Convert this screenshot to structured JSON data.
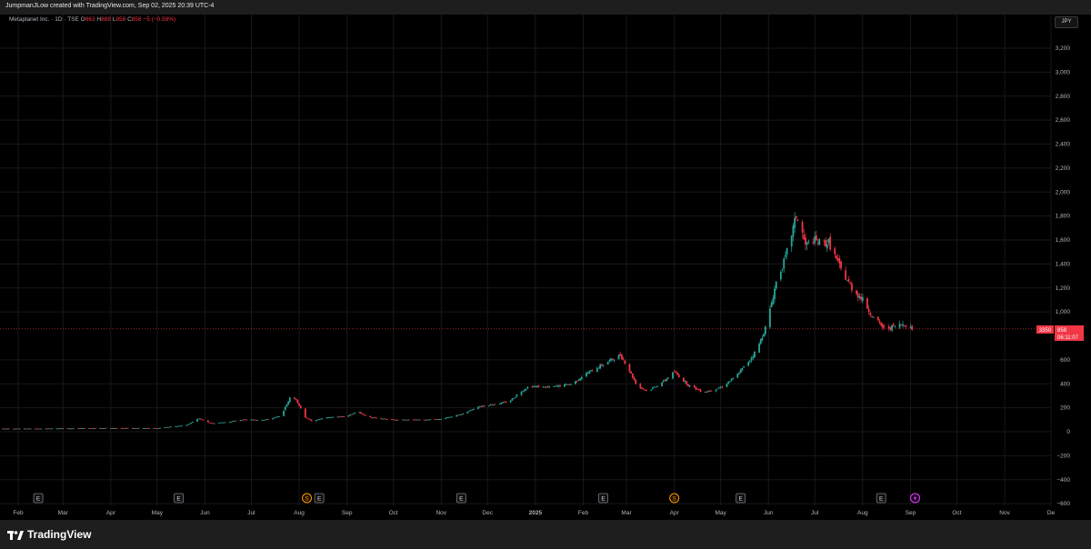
{
  "header": {
    "title": "JumpmanJLow created with TradingView.com, Sep 02, 2025 20:39 UTC-4"
  },
  "legend": {
    "symbol": "Metaplanet Inc. · 1D · TSE",
    "o_label": "O",
    "o_value": "863",
    "h_label": "H",
    "h_value": "888",
    "l_label": "L",
    "l_value": "858",
    "c_label": "C",
    "c_value": "858",
    "change": "−5 (−0.59%)"
  },
  "currency": "JPY",
  "price_tag": {
    "left": "3350",
    "value": "858",
    "countdown": "06:11:07"
  },
  "brand": {
    "name": "TradingView"
  },
  "colors": {
    "up": "#26a69a",
    "down": "#f23645",
    "grid": "#181818",
    "axis_text": "#b2b5be"
  },
  "chart_data": {
    "type": "candlestick",
    "x_ticks": [
      "Feb",
      "Mar",
      "Apr",
      "May",
      "Jun",
      "Jul",
      "Aug",
      "Sep",
      "Oct",
      "Nov",
      "Dec",
      "2025",
      "Feb",
      "Mar",
      "Apr",
      "May",
      "Jun",
      "Jul",
      "Aug",
      "Sep",
      "Oct",
      "Nov",
      "De"
    ],
    "y_ticks": [
      "3,200",
      "3,000",
      "2,800",
      "2,600",
      "2,400",
      "2,200",
      "2,000",
      "1,800",
      "1,600",
      "1,400",
      "1,200",
      "1,000",
      "600",
      "400",
      "200",
      "0",
      "−200",
      "−400",
      "−600"
    ],
    "ylim": [
      -600,
      3300
    ],
    "last_price": 858,
    "events": [
      {
        "type": "E",
        "date": "2024-02-14"
      },
      {
        "type": "E",
        "date": "2024-05-15"
      },
      {
        "type": "S",
        "date": "2024-08-06"
      },
      {
        "type": "E",
        "date": "2024-08-14"
      },
      {
        "type": "E",
        "date": "2024-11-14"
      },
      {
        "type": "E",
        "date": "2025-02-14"
      },
      {
        "type": "S",
        "date": "2025-04-01"
      },
      {
        "type": "E",
        "date": "2025-05-14"
      },
      {
        "type": "E",
        "date": "2025-08-13"
      },
      {
        "type": "D",
        "date": "2025-09-04"
      }
    ],
    "anchors": [
      [
        "2024-01-01",
        25
      ],
      [
        "2024-02-01",
        25
      ],
      [
        "2024-03-01",
        27
      ],
      [
        "2024-04-01",
        30
      ],
      [
        "2024-05-01",
        30
      ],
      [
        "2024-05-20",
        55
      ],
      [
        "2024-05-28",
        110
      ],
      [
        "2024-06-05",
        70
      ],
      [
        "2024-06-15",
        80
      ],
      [
        "2024-06-25",
        100
      ],
      [
        "2024-07-10",
        100
      ],
      [
        "2024-07-20",
        130
      ],
      [
        "2024-07-26",
        280
      ],
      [
        "2024-07-30",
        270
      ],
      [
        "2024-08-05",
        120
      ],
      [
        "2024-08-09",
        90
      ],
      [
        "2024-08-20",
        120
      ],
      [
        "2024-09-01",
        130
      ],
      [
        "2024-09-08",
        170
      ],
      [
        "2024-09-15",
        120
      ],
      [
        "2024-10-01",
        100
      ],
      [
        "2024-10-20",
        100
      ],
      [
        "2024-11-01",
        105
      ],
      [
        "2024-11-15",
        150
      ],
      [
        "2024-11-25",
        210
      ],
      [
        "2024-12-05",
        230
      ],
      [
        "2024-12-15",
        250
      ],
      [
        "2024-12-22",
        330
      ],
      [
        "2024-12-28",
        380
      ],
      [
        "2025-01-10",
        370
      ],
      [
        "2025-01-25",
        400
      ],
      [
        "2025-02-01",
        470
      ],
      [
        "2025-02-15",
        570
      ],
      [
        "2025-02-25",
        640
      ],
      [
        "2025-03-01",
        560
      ],
      [
        "2025-03-08",
        380
      ],
      [
        "2025-03-15",
        340
      ],
      [
        "2025-03-25",
        420
      ],
      [
        "2025-04-01",
        500
      ],
      [
        "2025-04-10",
        390
      ],
      [
        "2025-04-20",
        330
      ],
      [
        "2025-05-01",
        370
      ],
      [
        "2025-05-10",
        450
      ],
      [
        "2025-05-20",
        600
      ],
      [
        "2025-05-25",
        700
      ],
      [
        "2025-05-31",
        900
      ],
      [
        "2025-06-06",
        1250
      ],
      [
        "2025-06-12",
        1450
      ],
      [
        "2025-06-16",
        1650
      ],
      [
        "2025-06-19",
        1800
      ],
      [
        "2025-06-22",
        1700
      ],
      [
        "2025-06-25",
        1550
      ],
      [
        "2025-06-30",
        1600
      ],
      [
        "2025-07-05",
        1570
      ],
      [
        "2025-07-10",
        1580
      ],
      [
        "2025-07-18",
        1350
      ],
      [
        "2025-07-25",
        1200
      ],
      [
        "2025-08-01",
        1100
      ],
      [
        "2025-08-08",
        950
      ],
      [
        "2025-08-15",
        860
      ],
      [
        "2025-08-22",
        880
      ],
      [
        "2025-08-28",
        900
      ],
      [
        "2025-09-02",
        858
      ]
    ]
  }
}
